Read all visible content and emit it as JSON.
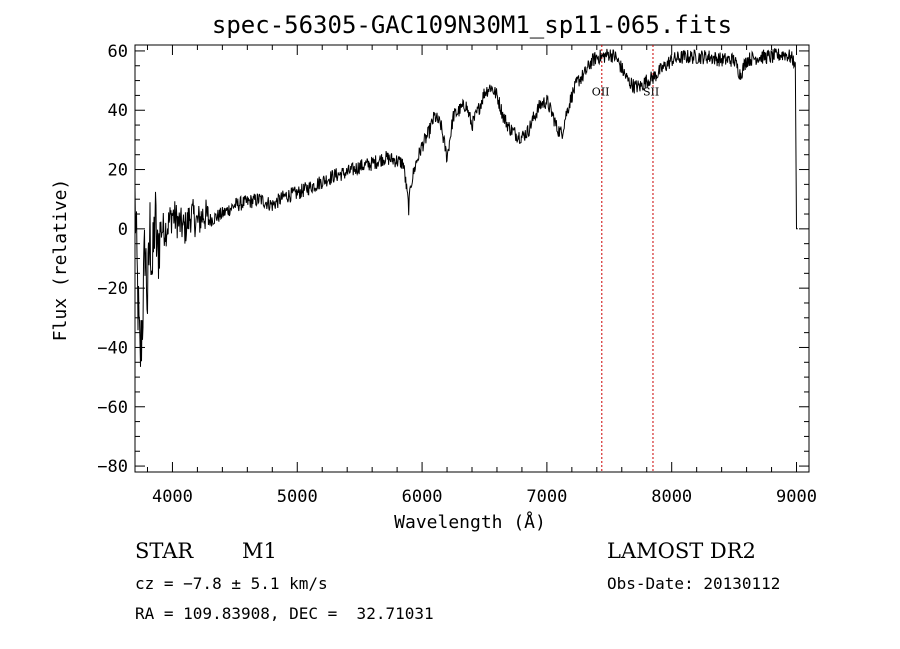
{
  "chart_data": {
    "type": "line",
    "title": "spec-56305-GAC109N30M1_sp11-065.fits",
    "xlabel": "Wavelength (Å)",
    "ylabel": "Flux (relative)",
    "xlim": [
      3700,
      9100
    ],
    "ylim": [
      -82,
      62
    ],
    "xticks": [
      4000,
      5000,
      6000,
      7000,
      8000,
      9000
    ],
    "yticks": [
      -80,
      -60,
      -40,
      -20,
      0,
      20,
      40,
      60
    ],
    "grid": false,
    "series": [
      {
        "x": [
          3700,
          3720,
          3740,
          3760,
          3780,
          3800,
          3820,
          3840,
          3860,
          3880,
          3900,
          3950,
          4000,
          4050,
          4100,
          4150,
          4200,
          4250,
          4300,
          4400,
          4500,
          4600,
          4700,
          4800,
          4900,
          5000,
          5100,
          5200,
          5300,
          5400,
          5500,
          5600,
          5700,
          5800,
          5850,
          5880,
          5893,
          5910,
          5950,
          6000,
          6050,
          6100,
          6150,
          6200,
          6250,
          6300,
          6350,
          6400,
          6450,
          6500,
          6550,
          6600,
          6650,
          6700,
          6750,
          6800,
          6850,
          6900,
          6950,
          7000,
          7050,
          7080,
          7120,
          7150,
          7200,
          7250,
          7300,
          7350,
          7400,
          7450,
          7500,
          7550,
          7600,
          7650,
          7700,
          7750,
          7800,
          7850,
          7900,
          7950,
          8000,
          8100,
          8200,
          8300,
          8400,
          8500,
          8550,
          8600,
          8700,
          8800,
          8900,
          8950,
          8990,
          9000,
          9010
        ],
        "y": [
          10,
          -20,
          -45,
          -30,
          -5,
          -25,
          0,
          -15,
          5,
          -10,
          0,
          0,
          5,
          2,
          0,
          5,
          2,
          5,
          3,
          5,
          8,
          9,
          10,
          8,
          11,
          12,
          14,
          16,
          18,
          19,
          21,
          22,
          24,
          23,
          22,
          12,
          7,
          15,
          22,
          28,
          32,
          38,
          35,
          24,
          38,
          40,
          42,
          35,
          40,
          46,
          48,
          45,
          38,
          34,
          32,
          31,
          33,
          38,
          42,
          43,
          38,
          34,
          32,
          38,
          45,
          50,
          52,
          56,
          58,
          58,
          59,
          58,
          54,
          50,
          48,
          48,
          50,
          51,
          53,
          55,
          57,
          58,
          58,
          58,
          57,
          57,
          52,
          57,
          58,
          58,
          59,
          58,
          56,
          0,
          0
        ]
      }
    ],
    "vlines": [
      {
        "x": 7440,
        "label": "OII"
      },
      {
        "x": 7850,
        "label": "SII"
      }
    ]
  },
  "info": {
    "object_type": "STAR",
    "subclass": "M1",
    "survey": "LAMOST DR2",
    "cz": "cz = −7.8 ± 5.1 km/s",
    "obs_date": "Obs-Date: 20130112",
    "radec": "RA = 109.83908, DEC =  32.71031"
  },
  "colors": {
    "line": "#000000",
    "marker_line": "#cc0000"
  }
}
